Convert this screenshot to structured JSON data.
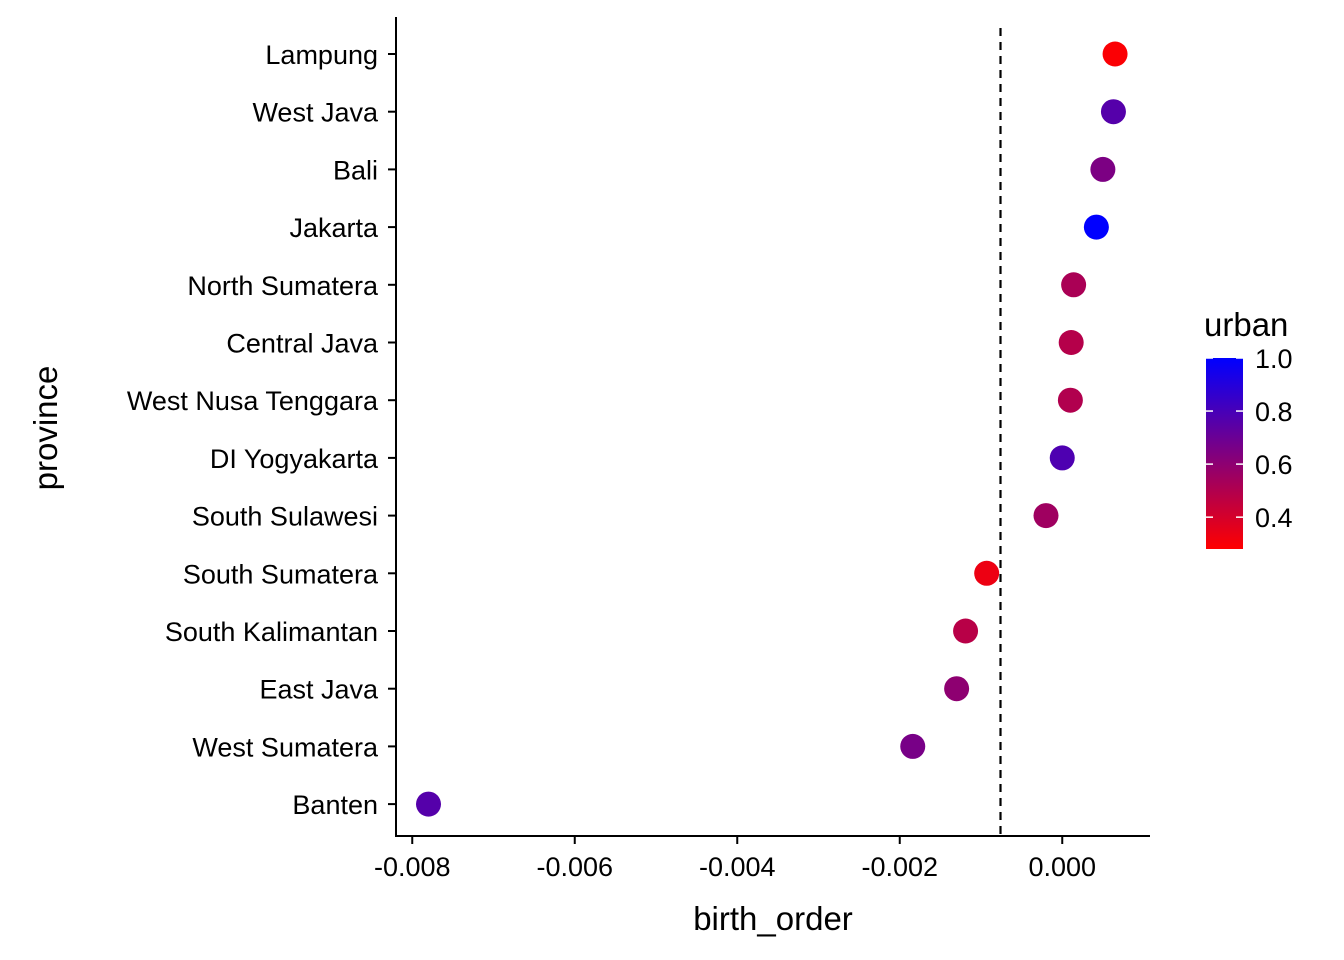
{
  "chart_data": {
    "type": "scatter",
    "xlabel": "birth_order",
    "ylabel": "province",
    "xlim": [
      -0.0082,
      0.00108
    ],
    "x_ticks": [
      -0.008,
      -0.006,
      -0.004,
      -0.002,
      0.0
    ],
    "x_tick_labels": [
      "-0.008",
      "-0.006",
      "-0.004",
      "-0.002",
      "0.000"
    ],
    "reference_line": {
      "x": -0.00076,
      "style": "dashed"
    },
    "grid": false,
    "color_scale": {
      "name": "urban",
      "low_color": "#FF0000",
      "high_color": "#0000FF",
      "domain": [
        0.28,
        1.0
      ],
      "ticks": [
        0.4,
        0.6,
        0.8,
        1.0
      ],
      "tick_labels": [
        "0.4",
        "0.6",
        "0.8",
        "1.0"
      ],
      "placement": "right"
    },
    "points": [
      {
        "province": "Lampung",
        "x": 0.00065,
        "urban": 0.29
      },
      {
        "province": "West Java",
        "x": 0.00063,
        "urban": 0.76
      },
      {
        "province": "Bali",
        "x": 0.0005,
        "urban": 0.65
      },
      {
        "province": "Jakarta",
        "x": 0.00042,
        "urban": 1.0
      },
      {
        "province": "North Sumatera",
        "x": 0.00014,
        "urban": 0.52
      },
      {
        "province": "Central Java",
        "x": 0.00011,
        "urban": 0.49
      },
      {
        "province": "West Nusa Tenggara",
        "x": 0.0001,
        "urban": 0.5
      },
      {
        "province": "DI Yogyakarta",
        "x": 0.0,
        "urban": 0.78
      },
      {
        "province": "South Sulawesi",
        "x": -0.0002,
        "urban": 0.55
      },
      {
        "province": "South Sumatera",
        "x": -0.00093,
        "urban": 0.33
      },
      {
        "province": "South Kalimantan",
        "x": -0.00119,
        "urban": 0.48
      },
      {
        "province": "East Java",
        "x": -0.0013,
        "urban": 0.6
      },
      {
        "province": "West Sumatera",
        "x": -0.00184,
        "urban": 0.66
      },
      {
        "province": "Banten",
        "x": -0.0078,
        "urban": 0.76
      }
    ]
  }
}
